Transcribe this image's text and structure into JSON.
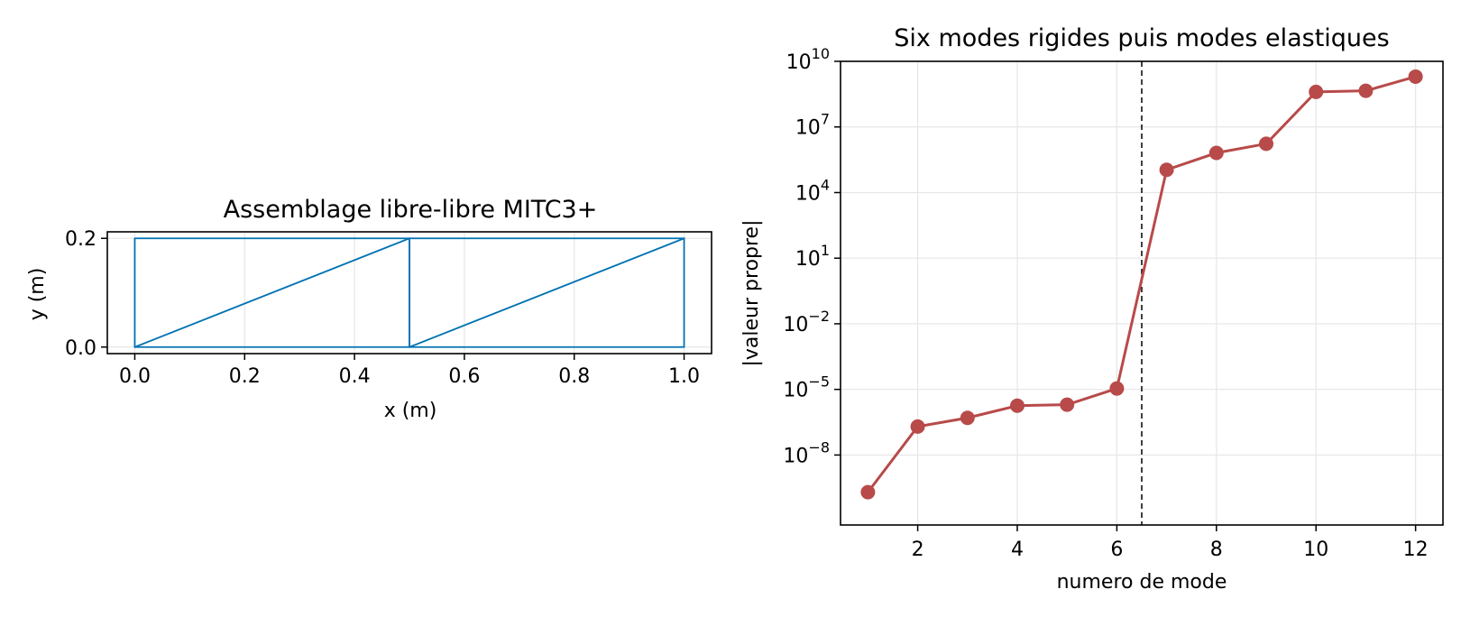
{
  "chart_data": [
    {
      "type": "line",
      "title": "Assemblage libre-libre MITC3+",
      "xlabel": "x (m)",
      "ylabel": "y (m)",
      "xlim": [
        -0.05,
        1.05
      ],
      "ylim": [
        -0.012,
        0.212
      ],
      "xticks": [
        "0.0",
        "0.2",
        "0.4",
        "0.6",
        "0.8",
        "1.0"
      ],
      "xtick_values": [
        0,
        0.2,
        0.4,
        0.6,
        0.8,
        1.0
      ],
      "yticks": [
        "0.0",
        "0.2"
      ],
      "ytick_values": [
        0,
        0.2
      ],
      "grid": true,
      "color": "#0072B2",
      "segments": [
        [
          [
            0,
            0
          ],
          [
            0.5,
            0
          ]
        ],
        [
          [
            0.5,
            0
          ],
          [
            0.5,
            0.2
          ]
        ],
        [
          [
            0.5,
            0.2
          ],
          [
            0,
            0.2
          ]
        ],
        [
          [
            0,
            0.2
          ],
          [
            0,
            0
          ]
        ],
        [
          [
            0,
            0
          ],
          [
            0.5,
            0.2
          ]
        ],
        [
          [
            0.5,
            0
          ],
          [
            1.0,
            0
          ]
        ],
        [
          [
            1.0,
            0
          ],
          [
            1.0,
            0.2
          ]
        ],
        [
          [
            1.0,
            0.2
          ],
          [
            0.5,
            0.2
          ]
        ],
        [
          [
            0.5,
            0.2
          ],
          [
            0.5,
            0
          ]
        ],
        [
          [
            0.5,
            0
          ],
          [
            1.0,
            0.2
          ]
        ]
      ]
    },
    {
      "type": "line",
      "title": "Six modes rigides puis modes elastiques",
      "xlabel": "numero de mode",
      "ylabel": "|valeur propre|",
      "yscale": "log",
      "xlim": [
        0.45,
        12.55
      ],
      "ylim_log10": [
        -11.2,
        10
      ],
      "xticks": [
        "2",
        "4",
        "6",
        "8",
        "10",
        "12"
      ],
      "xtick_values": [
        2,
        4,
        6,
        8,
        10,
        12
      ],
      "yticks": [
        {
          "base": "10",
          "exp": "10",
          "value": 10
        },
        {
          "base": "10",
          "exp": "7",
          "value": 7
        },
        {
          "base": "10",
          "exp": "4",
          "value": 4
        },
        {
          "base": "10",
          "exp": "1",
          "value": 1
        },
        {
          "base": "10",
          "exp": "−2",
          "value": -2
        },
        {
          "base": "10",
          "exp": "−5",
          "value": -5
        },
        {
          "base": "10",
          "exp": "−8",
          "value": -8
        }
      ],
      "grid": true,
      "color": "#B84A4A",
      "vline": 6.5,
      "x": [
        1,
        2,
        3,
        4,
        5,
        6,
        7,
        8,
        9,
        10,
        11,
        12
      ],
      "y": [
        2e-10,
        2e-07,
        5e-07,
        1.8e-06,
        2e-06,
        1.1e-05,
        110000.0,
        650000.0,
        1700000.0,
        400000000.0,
        450000000.0,
        2000000000.0
      ]
    }
  ]
}
